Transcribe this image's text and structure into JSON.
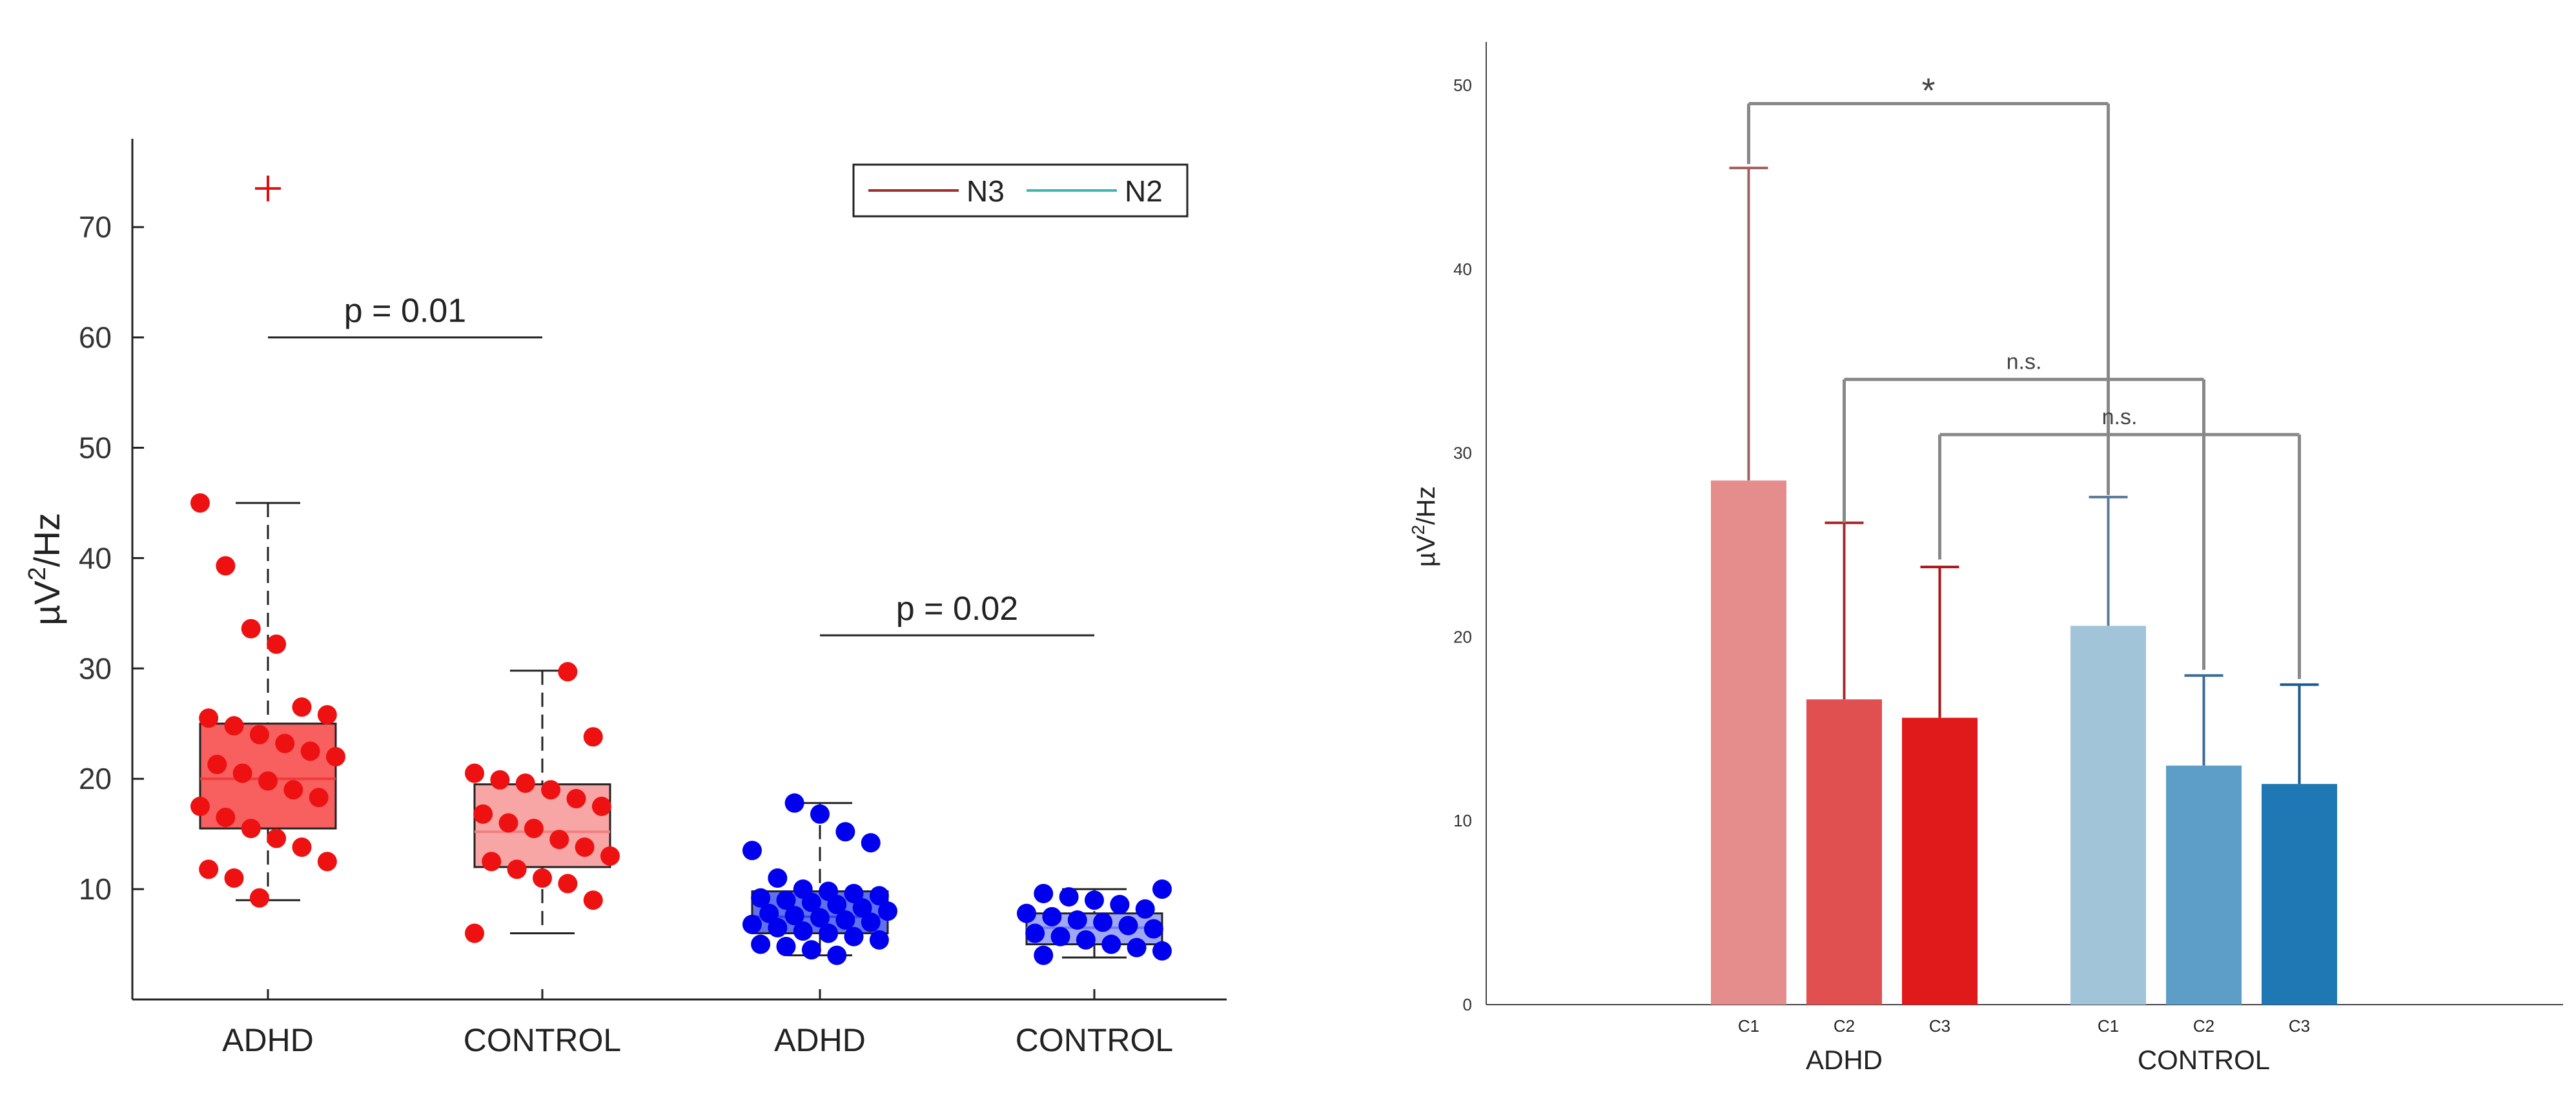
{
  "chart_data": [
    {
      "type": "box",
      "ylabel_base": "µV",
      "ylabel_sup": "2",
      "ylabel_tail": "/Hz",
      "ylim": [
        0,
        78
      ],
      "yticks": [
        10,
        20,
        30,
        40,
        50,
        60,
        70
      ],
      "categories": [
        "ADHD",
        "CONTROL",
        "ADHD",
        "CONTROL"
      ],
      "legend": [
        {
          "name": "N3",
          "color": "#a03030"
        },
        {
          "name": "N2",
          "color": "#3cb8b0"
        }
      ],
      "boxes": [
        {
          "category": "ADHD",
          "group": "N3",
          "min": 9,
          "q1": 15.5,
          "median": 20,
          "q3": 25,
          "max": 45,
          "outliers": [
            73.5
          ],
          "color": "#f03a3a",
          "fill": "#f86060",
          "point_color": "#ee1111",
          "points": [
            45,
            39.3,
            33.6,
            32.2,
            26.5,
            25.8,
            25.5,
            24.8,
            24,
            23.2,
            22.5,
            22,
            21.3,
            20.5,
            19.8,
            19,
            18.3,
            17.5,
            16.5,
            15.5,
            14.6,
            13.8,
            12.5,
            11.8,
            11,
            9.2
          ]
        },
        {
          "category": "CONTROL",
          "group": "N3",
          "min": 6,
          "q1": 12,
          "median": 15.2,
          "q3": 19.5,
          "max": 29.8,
          "outliers": [],
          "color": "#f08080",
          "fill": "#f7a5a5",
          "point_color": "#ee1111",
          "points": [
            29.7,
            23.8,
            20.5,
            19.9,
            19.6,
            19,
            18.2,
            17.5,
            16.8,
            16,
            15.5,
            14.5,
            13.8,
            13,
            12.5,
            11.8,
            11,
            10.5,
            9,
            6
          ]
        },
        {
          "category": "ADHD",
          "group": "N2",
          "min": 4,
          "q1": 6,
          "median": 7.5,
          "q3": 9.8,
          "max": 17.8,
          "outliers": [],
          "color": "#3344ee",
          "fill": "#6070f0",
          "point_color": "#0000ee",
          "points": [
            17.8,
            16.8,
            15.2,
            14.2,
            13.5,
            11,
            10,
            9.8,
            9.6,
            9.4,
            9.2,
            9,
            8.8,
            8.6,
            8.3,
            8,
            7.8,
            7.6,
            7.4,
            7.2,
            7,
            6.8,
            6.5,
            6.2,
            6,
            5.7,
            5.4,
            5,
            4.8,
            4.5,
            4
          ]
        },
        {
          "category": "CONTROL",
          "group": "N2",
          "min": 3.8,
          "q1": 5,
          "median": 6.5,
          "q3": 7.8,
          "max": 10,
          "outliers": [],
          "color": "#7080f0",
          "fill": "#a0a8f4",
          "point_color": "#0000ee",
          "points": [
            10,
            9.6,
            9.3,
            9,
            8.6,
            8.2,
            7.8,
            7.5,
            7.2,
            7,
            6.7,
            6.4,
            6,
            5.7,
            5.4,
            5,
            4.7,
            4.4,
            4
          ]
        }
      ],
      "annotations": [
        {
          "text": "p = 0.01",
          "y": 60,
          "from": 0,
          "to": 1
        },
        {
          "text": "p = 0.02",
          "y": 33,
          "from": 2,
          "to": 3
        }
      ]
    },
    {
      "type": "bar",
      "ylabel_base": "µV",
      "ylabel_sup": "2",
      "ylabel_tail": "/Hz",
      "ylim": [
        0,
        52
      ],
      "yticks": [
        0,
        10,
        20,
        30,
        40,
        50
      ],
      "groups": [
        "ADHD",
        "CONTROL"
      ],
      "categories": [
        "C1",
        "C2",
        "C3"
      ],
      "series": [
        {
          "group": "ADHD",
          "values": [
            28.5,
            16.6,
            15.6
          ],
          "errors": [
            17,
            9.6,
            8.2
          ],
          "colors": [
            "#e58c8c",
            "#e05050",
            "#e01a1a"
          ],
          "err_colors": [
            "#a06060",
            "#a82828",
            "#a81818"
          ]
        },
        {
          "group": "CONTROL",
          "values": [
            20.6,
            13,
            12
          ],
          "errors": [
            7,
            4.9,
            5.4
          ],
          "colors": [
            "#a2c4d8",
            "#5c9ec8",
            "#1f78b4"
          ],
          "err_colors": [
            "#5a7a96",
            "#3a6a96",
            "#1a5a8e"
          ]
        }
      ],
      "significance": [
        {
          "text": "*",
          "y": 49,
          "from": [
            0,
            0
          ],
          "to": [
            1,
            0
          ],
          "from_top": 45.5,
          "to_top": 27.5
        },
        {
          "text": "n.s.",
          "y": 34,
          "from": [
            0,
            1
          ],
          "to": [
            1,
            1
          ],
          "from_top": 26,
          "to_top": 18
        },
        {
          "text": "n.s.",
          "y": 31,
          "from": [
            0,
            2
          ],
          "to": [
            1,
            2
          ],
          "from_top": 24,
          "to_top": 17.5
        }
      ]
    }
  ]
}
